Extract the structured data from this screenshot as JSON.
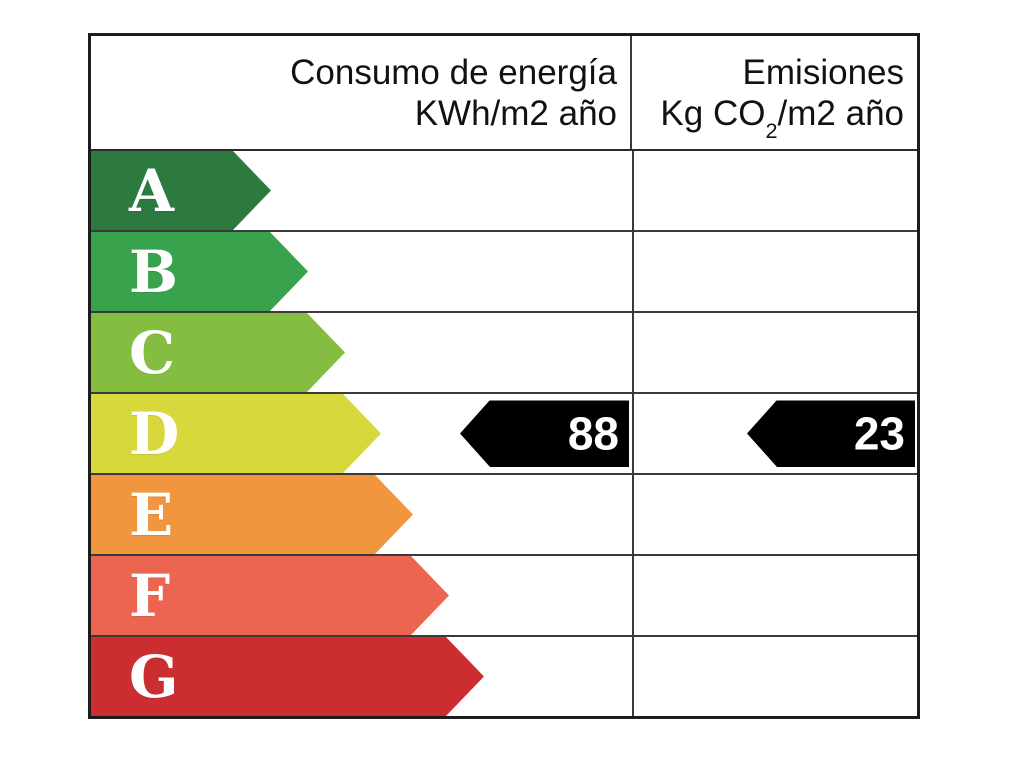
{
  "header": {
    "consumo_line1": "Consumo de energía",
    "consumo_line2": "KWh/m2 año",
    "emisiones_line1": "Emisiones",
    "emisiones_line2_prefix": "Kg CO",
    "emisiones_line2_sub": "2",
    "emisiones_line2_suffix": "/m2 año"
  },
  "ratings": [
    {
      "letter": "A",
      "color": "#2d7a41"
    },
    {
      "letter": "B",
      "color": "#38a34c"
    },
    {
      "letter": "C",
      "color": "#85bd41"
    },
    {
      "letter": "D",
      "color": "#d7d83c"
    },
    {
      "letter": "E",
      "color": "#f1953e"
    },
    {
      "letter": "F",
      "color": "#ec6550"
    },
    {
      "letter": "G",
      "color": "#cb2d30"
    }
  ],
  "current": {
    "rating_letter": "D",
    "consumo_value": "88",
    "emisiones_value": "23",
    "arrow_color": "#000000",
    "value_text_color": "#ffffff"
  },
  "chart_data": {
    "type": "bar",
    "categories": [
      "A",
      "B",
      "C",
      "D",
      "E",
      "F",
      "G"
    ],
    "bar_colors": [
      "#2d7a41",
      "#38a34c",
      "#85bd41",
      "#d7d83c",
      "#f1953e",
      "#ec6550",
      "#cb2d30"
    ],
    "columns": [
      "Consumo de energía KWh/m2 año",
      "Emisiones Kg CO2/m2 año"
    ],
    "selected_rating": "D",
    "series": [
      {
        "name": "Consumo de energía KWh/m2 año",
        "values": [
          null,
          null,
          null,
          88,
          null,
          null,
          null
        ]
      },
      {
        "name": "Emisiones Kg CO2/m2 año",
        "values": [
          null,
          null,
          null,
          23,
          null,
          null,
          null
        ]
      }
    ],
    "legend_position": "none",
    "grid": false
  }
}
